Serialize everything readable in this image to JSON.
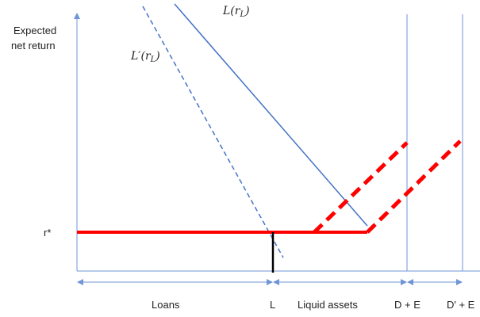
{
  "y_axis_label_line1": "Expected",
  "y_axis_label_line2": "net return",
  "r_star_label": "r*",
  "curve_L": {
    "name": "L",
    "arg": "r",
    "arg_sub": "L"
  },
  "curve_L_prime": {
    "name": "L′",
    "arg": "r",
    "arg_sub": "L"
  },
  "x_labels": {
    "loans": "Loans",
    "L": "L",
    "liquid_assets": "Liquid assets",
    "D_E": "D + E",
    "D_prime_E": "D′ + E"
  },
  "colors": {
    "axis": "#6f95d6",
    "curve": "#4472c4",
    "return_line": "#ff0000",
    "marker": "#000000"
  }
}
